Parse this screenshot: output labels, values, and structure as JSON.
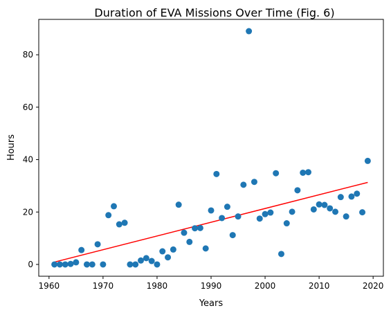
{
  "chart_data": {
    "type": "scatter",
    "title": "Duration of EVA Missions Over Time (Fig. 6)",
    "xlabel": "Years",
    "ylabel": "Hours",
    "xlim": [
      1958.1,
      2021.9
    ],
    "ylim": [
      -4.5,
      93.5
    ],
    "xticks": [
      1960,
      1970,
      1980,
      1990,
      2000,
      2010,
      2020
    ],
    "yticks": [
      0,
      20,
      40,
      60,
      80
    ],
    "grid": false,
    "point_color": "#1f77b4",
    "trend_color": "#ff0000",
    "series": [
      {
        "points": [
          [
            1961,
            0.0
          ],
          [
            1962,
            0.0
          ],
          [
            1963,
            0.0
          ],
          [
            1964,
            0.2
          ],
          [
            1965,
            0.8
          ],
          [
            1966,
            5.5
          ],
          [
            1967,
            0.0
          ],
          [
            1968,
            0.0
          ],
          [
            1969,
            7.7
          ],
          [
            1970,
            0.0
          ],
          [
            1971,
            18.8
          ],
          [
            1972,
            22.2
          ],
          [
            1973,
            15.3
          ],
          [
            1974,
            15.9
          ],
          [
            1975,
            0.0
          ],
          [
            1976,
            0.0
          ],
          [
            1977,
            1.5
          ],
          [
            1978,
            2.4
          ],
          [
            1979,
            1.3
          ],
          [
            1980,
            0.0
          ],
          [
            1981,
            5.0
          ],
          [
            1982,
            2.7
          ],
          [
            1983,
            5.7
          ],
          [
            1984,
            22.8
          ],
          [
            1985,
            12.1
          ],
          [
            1986,
            8.6
          ],
          [
            1987,
            13.8
          ],
          [
            1988,
            13.9
          ],
          [
            1989,
            6.1
          ],
          [
            1990,
            20.6
          ],
          [
            1991,
            34.5
          ],
          [
            1992,
            17.7
          ],
          [
            1993,
            22.0
          ],
          [
            1994,
            11.2
          ],
          [
            1995,
            18.3
          ],
          [
            1996,
            30.4
          ],
          [
            1997,
            89.0
          ],
          [
            1998,
            31.5
          ],
          [
            1999,
            17.5
          ],
          [
            2000,
            19.2
          ],
          [
            2001,
            19.8
          ],
          [
            2002,
            34.8
          ],
          [
            2003,
            4.0
          ],
          [
            2004,
            15.7
          ],
          [
            2005,
            20.1
          ],
          [
            2006,
            28.3
          ],
          [
            2007,
            35.0
          ],
          [
            2008,
            35.2
          ],
          [
            2009,
            21.0
          ],
          [
            2010,
            22.9
          ],
          [
            2011,
            22.7
          ],
          [
            2012,
            21.4
          ],
          [
            2013,
            20.1
          ],
          [
            2014,
            25.7
          ],
          [
            2015,
            18.3
          ],
          [
            2016,
            25.9
          ],
          [
            2017,
            27.0
          ],
          [
            2018,
            19.9
          ],
          [
            2019,
            39.5
          ]
        ]
      }
    ],
    "trendline": {
      "x": [
        1961,
        2019
      ],
      "y": [
        0.9,
        31.3
      ]
    }
  }
}
